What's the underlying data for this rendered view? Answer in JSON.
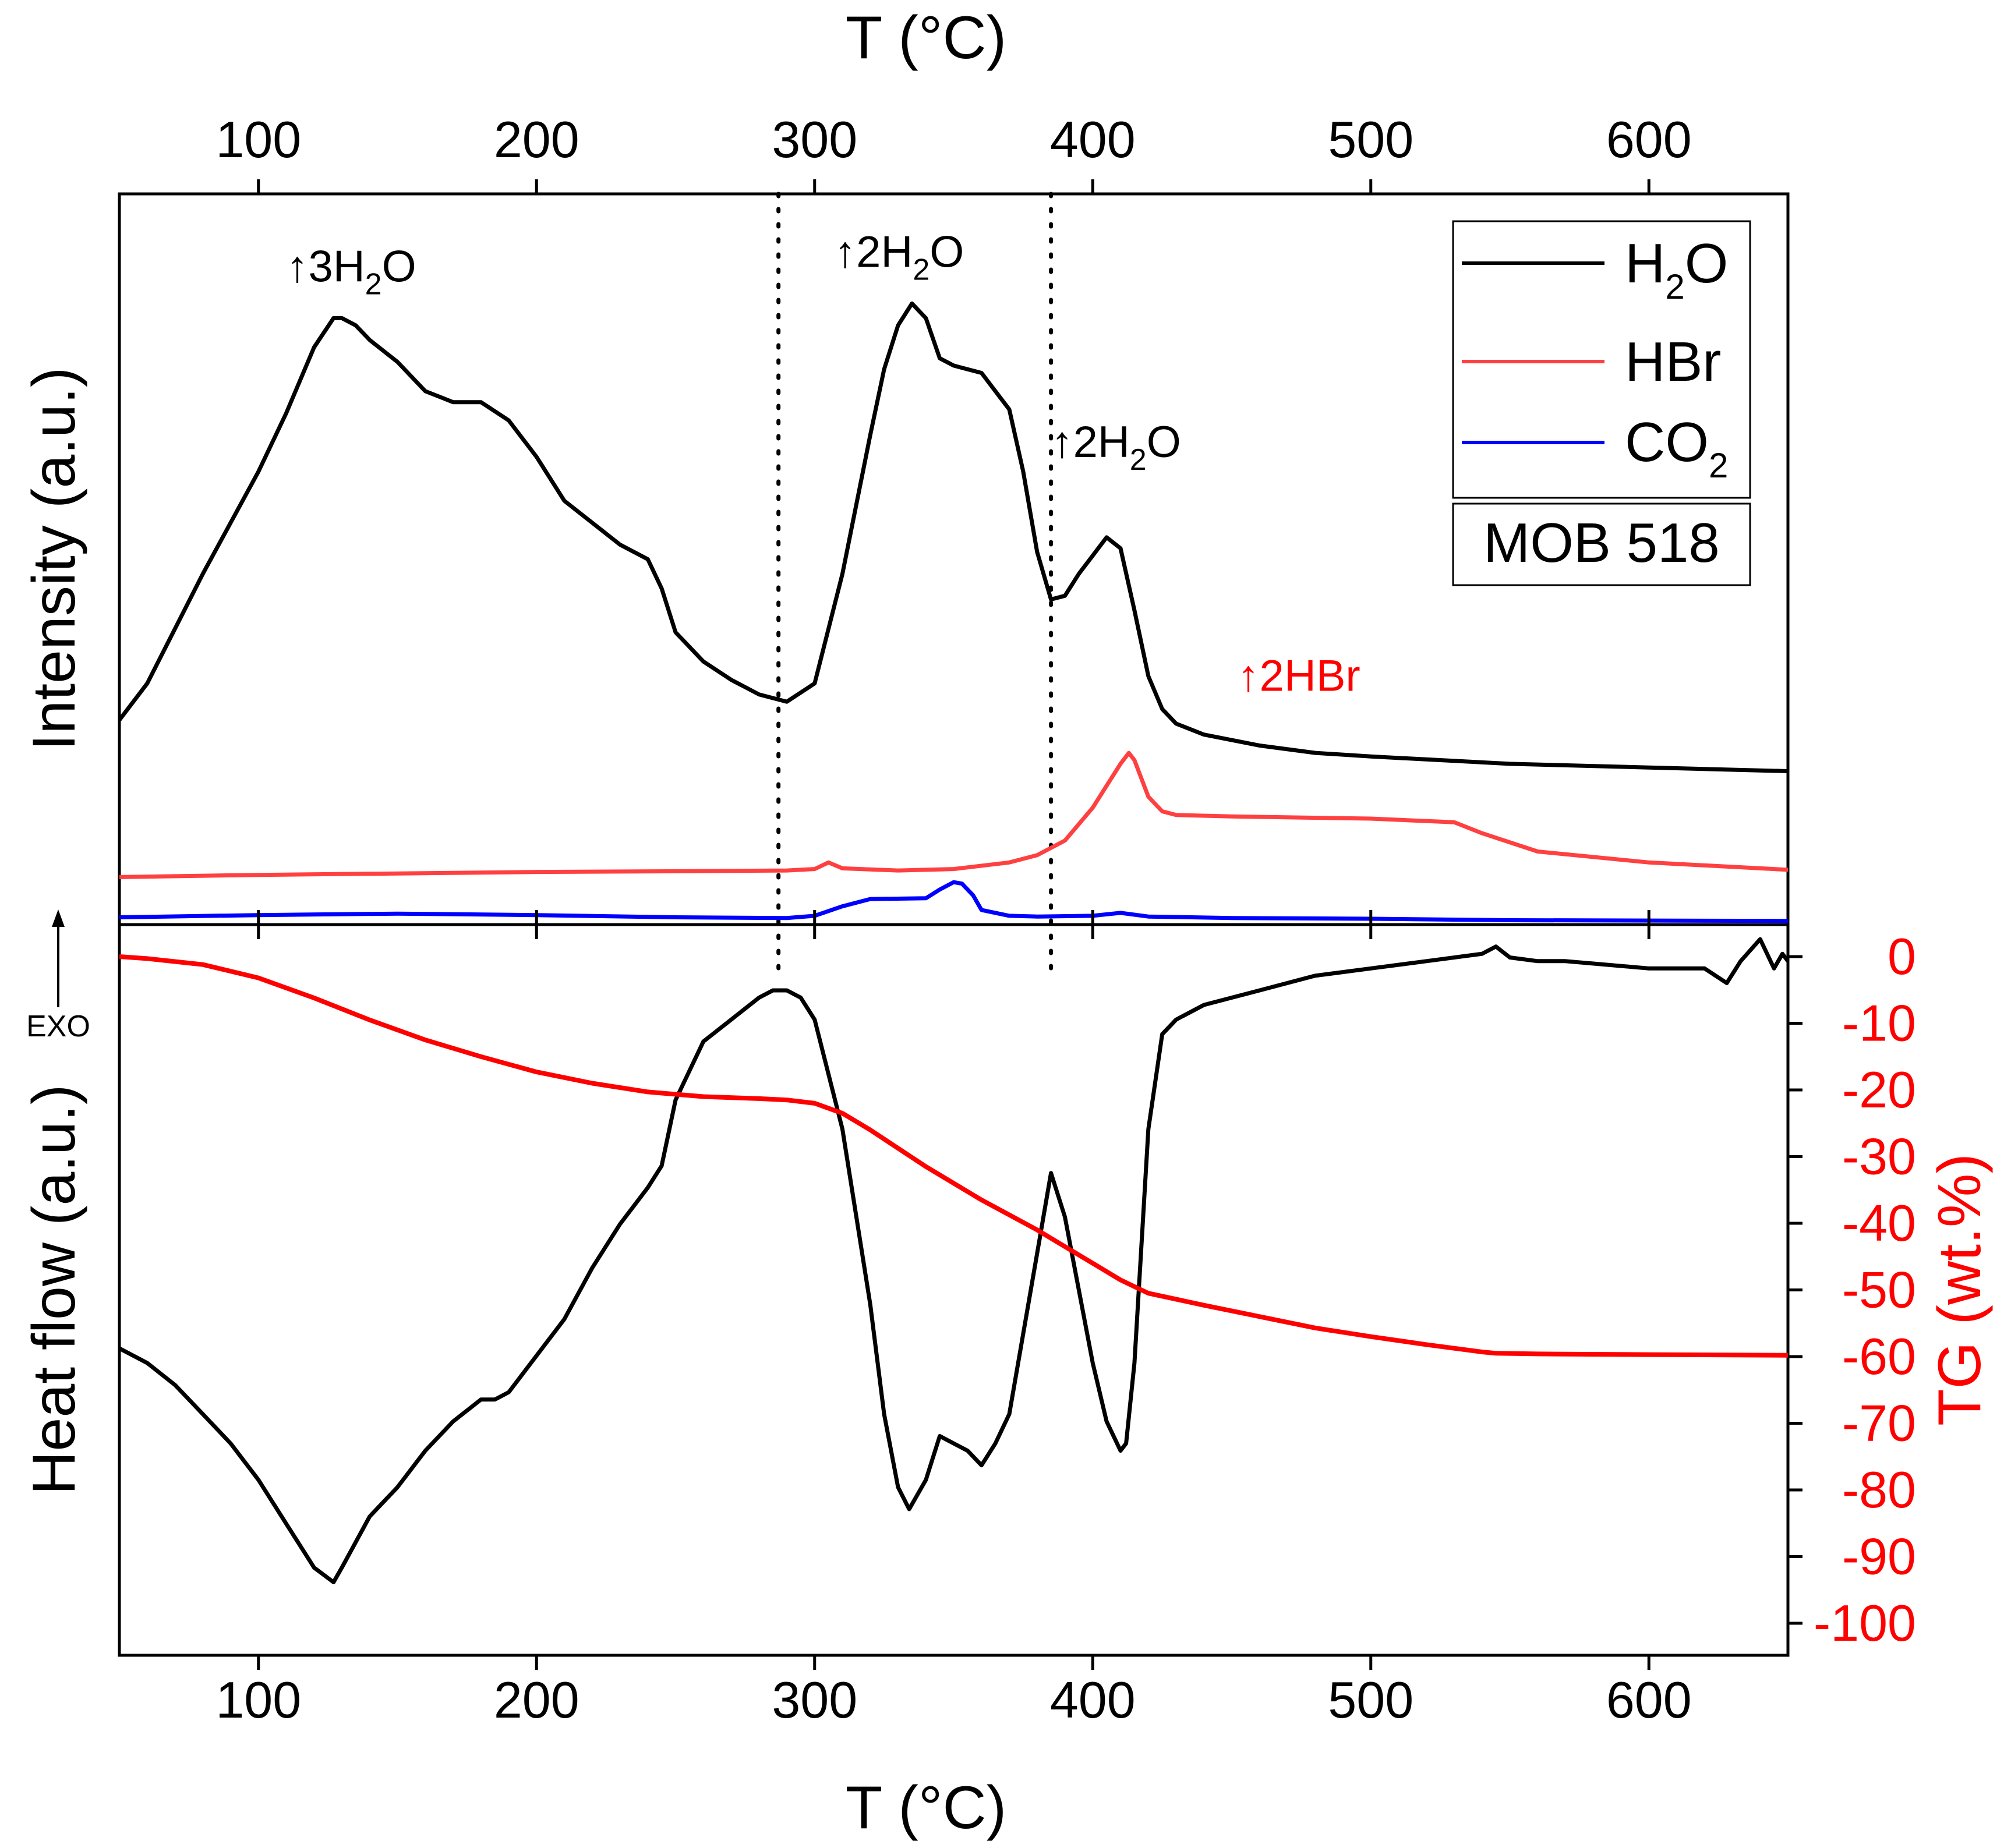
{
  "chart_data": {
    "type": "line",
    "title": "",
    "sample_label": "MOB 518",
    "x_axis": {
      "label": "T (°C)",
      "xlim": [
        50,
        650
      ],
      "ticks": [
        100,
        200,
        300,
        400,
        500,
        600
      ]
    },
    "top_x_axis": {
      "label": "T (°C)"
    },
    "vertical_markers": [
      287,
      385
    ],
    "top_panel": {
      "ylabel": "Intensity (a.u.)",
      "legend": [
        {
          "name": "H2O",
          "color": "#000000"
        },
        {
          "name": "HBr",
          "color": "#ff4040"
        },
        {
          "name": "CO2",
          "color": "#0000ff"
        }
      ],
      "series": [
        {
          "name": "H2O",
          "color": "#000000",
          "x": [
            50,
            60,
            80,
            100,
            110,
            120,
            127,
            130,
            135,
            140,
            150,
            160,
            170,
            180,
            190,
            200,
            210,
            220,
            230,
            240,
            245,
            250,
            260,
            270,
            280,
            290,
            300,
            310,
            320,
            325,
            330,
            335,
            340,
            345,
            350,
            360,
            370,
            375,
            380,
            385,
            390,
            395,
            400,
            405,
            410,
            415,
            420,
            425,
            430,
            440,
            460,
            480,
            500,
            550,
            600,
            650
          ],
          "y": [
            0.28,
            0.33,
            0.48,
            0.62,
            0.7,
            0.79,
            0.83,
            0.83,
            0.82,
            0.8,
            0.77,
            0.73,
            0.715,
            0.715,
            0.69,
            0.64,
            0.58,
            0.55,
            0.52,
            0.5,
            0.46,
            0.4,
            0.36,
            0.335,
            0.315,
            0.305,
            0.33,
            0.48,
            0.67,
            0.76,
            0.82,
            0.85,
            0.83,
            0.775,
            0.765,
            0.755,
            0.705,
            0.62,
            0.51,
            0.445,
            0.45,
            0.48,
            0.505,
            0.53,
            0.515,
            0.43,
            0.34,
            0.295,
            0.275,
            0.26,
            0.245,
            0.235,
            0.23,
            0.22,
            0.215,
            0.21
          ]
        },
        {
          "name": "HBr",
          "color": "#ff4040",
          "x": [
            50,
            100,
            150,
            200,
            250,
            290,
            300,
            305,
            310,
            330,
            350,
            370,
            380,
            390,
            400,
            405,
            410,
            413,
            415,
            420,
            425,
            430,
            450,
            500,
            530,
            540,
            560,
            600,
            650
          ],
          "y": [
            0.065,
            0.068,
            0.07,
            0.072,
            0.073,
            0.074,
            0.076,
            0.085,
            0.077,
            0.074,
            0.076,
            0.085,
            0.095,
            0.115,
            0.16,
            0.19,
            0.22,
            0.235,
            0.225,
            0.175,
            0.155,
            0.15,
            0.148,
            0.145,
            0.14,
            0.125,
            0.1,
            0.085,
            0.075
          ]
        },
        {
          "name": "CO2",
          "color": "#0000ff",
          "x": [
            50,
            100,
            150,
            200,
            250,
            290,
            300,
            310,
            320,
            340,
            345,
            350,
            353,
            357,
            360,
            370,
            380,
            400,
            410,
            420,
            450,
            500,
            550,
            650
          ],
          "y": [
            0.01,
            0.013,
            0.015,
            0.013,
            0.01,
            0.009,
            0.012,
            0.025,
            0.035,
            0.036,
            0.048,
            0.058,
            0.056,
            0.04,
            0.02,
            0.012,
            0.011,
            0.012,
            0.016,
            0.011,
            0.009,
            0.008,
            0.006,
            0.005
          ]
        }
      ],
      "annotations": [
        {
          "text": "↑3H",
          "sub": "2",
          "rest": "O",
          "x": 110,
          "y": 0.88,
          "color": "#000000"
        },
        {
          "text": "↑2H",
          "sub": "2",
          "rest": "O",
          "x": 307,
          "y": 0.9,
          "color": "#000000"
        },
        {
          "text": "↑2H",
          "sub": "2",
          "rest": "O",
          "x": 385,
          "y": 0.64,
          "color": "#000000"
        },
        {
          "text": "↑2HBr",
          "sub": "",
          "rest": "",
          "x": 452,
          "y": 0.32,
          "color": "#ff0000"
        }
      ]
    },
    "bottom_panel": {
      "ylabel": "Heat flow (a.u.)",
      "exo_label": "EXO",
      "series": [
        {
          "name": "DTA",
          "color": "#000000",
          "x": [
            50,
            60,
            70,
            80,
            90,
            100,
            110,
            120,
            127,
            130,
            140,
            150,
            160,
            170,
            180,
            185,
            190,
            200,
            210,
            220,
            230,
            240,
            245,
            250,
            260,
            270,
            280,
            285,
            290,
            295,
            300,
            310,
            320,
            325,
            330,
            334,
            340,
            345,
            350,
            355,
            360,
            365,
            370,
            380,
            385,
            390,
            395,
            400,
            405,
            410,
            412,
            415,
            420,
            425,
            430,
            440,
            450,
            460,
            480,
            500,
            520,
            540,
            545,
            550,
            560,
            570,
            600,
            620,
            628,
            633,
            640,
            645,
            648,
            650
          ],
          "y": [
            0.42,
            0.4,
            0.37,
            0.33,
            0.29,
            0.24,
            0.18,
            0.12,
            0.1,
            0.12,
            0.19,
            0.23,
            0.28,
            0.32,
            0.35,
            0.35,
            0.36,
            0.41,
            0.46,
            0.53,
            0.59,
            0.64,
            0.67,
            0.76,
            0.84,
            0.87,
            0.9,
            0.91,
            0.91,
            0.9,
            0.87,
            0.72,
            0.48,
            0.33,
            0.23,
            0.2,
            0.24,
            0.3,
            0.29,
            0.28,
            0.26,
            0.29,
            0.33,
            0.55,
            0.66,
            0.6,
            0.5,
            0.4,
            0.32,
            0.28,
            0.29,
            0.4,
            0.72,
            0.85,
            0.87,
            0.89,
            0.9,
            0.91,
            0.93,
            0.94,
            0.95,
            0.96,
            0.97,
            0.955,
            0.95,
            0.95,
            0.94,
            0.94,
            0.92,
            0.95,
            0.98,
            0.94,
            0.96,
            0.95
          ]
        }
      ],
      "right_axis": {
        "label": "TG (wt.%)",
        "color": "#ff0000",
        "ylim": [
          -100,
          0
        ],
        "ticks": [
          0,
          -10,
          -20,
          -30,
          -40,
          -50,
          -60,
          -70,
          -80,
          -90,
          -100
        ],
        "series": {
          "name": "TG",
          "color": "#ff0000",
          "x": [
            50,
            60,
            80,
            100,
            120,
            140,
            160,
            180,
            200,
            220,
            240,
            260,
            280,
            290,
            300,
            310,
            320,
            340,
            360,
            380,
            390,
            400,
            410,
            415,
            420,
            440,
            460,
            480,
            500,
            520,
            540,
            545,
            560,
            600,
            650
          ],
          "y": [
            0,
            -0.3,
            -1.2,
            -3.2,
            -6.2,
            -9.5,
            -12.5,
            -15,
            -17.3,
            -19,
            -20.3,
            -21,
            -21.3,
            -21.5,
            -22,
            -23.5,
            -26,
            -31.5,
            -36.5,
            -41,
            -43.5,
            -46,
            -48.5,
            -49.5,
            -50.5,
            -52.3,
            -54,
            -55.7,
            -57,
            -58.2,
            -59.3,
            -59.5,
            -59.6,
            -59.7,
            -59.8
          ]
        }
      }
    }
  }
}
